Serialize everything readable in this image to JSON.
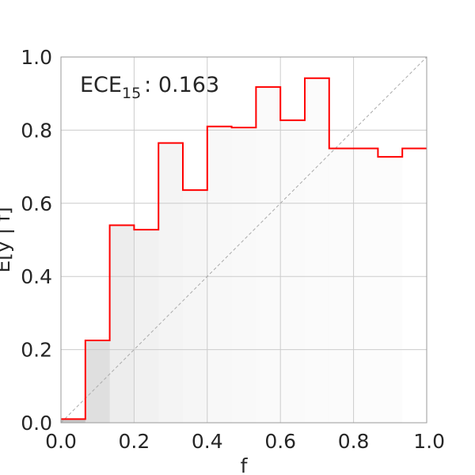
{
  "chart_data": {
    "type": "bar",
    "xlabel": "f",
    "ylabel": "E[y | f]",
    "xlim": [
      0.0,
      1.0
    ],
    "ylim": [
      0.0,
      1.0
    ],
    "xticks": [
      "0.0",
      "0.2",
      "0.4",
      "0.6",
      "0.8",
      "1.0"
    ],
    "yticks": [
      "0.0",
      "0.2",
      "0.4",
      "0.6",
      "0.8",
      "1.0"
    ],
    "grid": true,
    "annotation": {
      "label": "ECE",
      "subscript": "15",
      "value": ": 0.163"
    },
    "n_bins": 15,
    "bin_edges": [
      0.0,
      0.0667,
      0.1333,
      0.2,
      0.2667,
      0.3333,
      0.4,
      0.4667,
      0.5333,
      0.6,
      0.6667,
      0.7333,
      0.8,
      0.8667,
      0.9333,
      1.0
    ],
    "series": [
      {
        "values": [
          0.01,
          0.225,
          0.54,
          0.528,
          0.765,
          0.636,
          0.81,
          0.807,
          0.918,
          0.827,
          0.942,
          0.75,
          0.75,
          0.727,
          0.75
        ],
        "color": "#ff0000"
      }
    ],
    "bin_fill_opacity": [
      0.45,
      0.25,
      0.14,
      0.11,
      0.09,
      0.07,
      0.06,
      0.05,
      0.045,
      0.04,
      0.035,
      0.03,
      0.028,
      0.025,
      0.0
    ],
    "diagonal": {
      "style": "dashed",
      "color": "#aaaaaa"
    },
    "colors": {
      "step": "#ff0000",
      "bin_fill": "#808080",
      "grid": "#cccccc",
      "frame": "#999999",
      "text": "#262626"
    }
  }
}
